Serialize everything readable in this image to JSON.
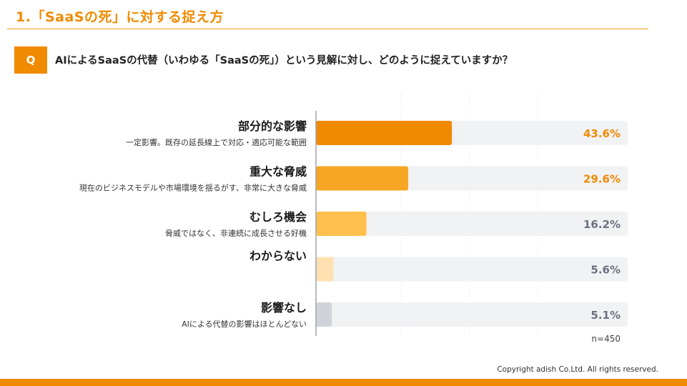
{
  "header": {
    "title": "1.「SaaSの死」に対する捉え方"
  },
  "question": {
    "badge": "Q",
    "text": "AIによるSaaSの代替（いわゆる「SaaSの死」）という見解に対し、どのように捉えていますか？"
  },
  "chart_data": {
    "type": "bar",
    "orientation": "horizontal",
    "categories": [
      "部分的な影響",
      "重大な脅威",
      "むしろ機会",
      "わからない",
      "影響なし"
    ],
    "sublabels": [
      "一定影響。既存の延長線上で対応・適応可能な範囲",
      "現在のビジネスモデルや市場環境を揺るがす、非常に大きな脅威",
      "脅威ではなく、非連続に成長させる好機",
      "",
      "AIによる代替の影響はほとんどない"
    ],
    "values": [
      43.6,
      29.6,
      16.2,
      5.6,
      5.1
    ],
    "value_labels": [
      "43.6%",
      "29.6%",
      "16.2%",
      "5.6%",
      "5.1%"
    ],
    "unit": "%",
    "xlim": [
      0,
      100
    ],
    "colors": [
      "#f08a00",
      "#f5a623",
      "#ffc04d",
      "#ffe0b0",
      "#d0d4da"
    ],
    "label_colors": [
      "#f08a00",
      "#f08a00",
      "#6b7280",
      "#6b7280",
      "#6b7280"
    ],
    "track_color": "#f1f2f4",
    "note": "n=450"
  },
  "footer": {
    "copyright": "Copyright adish Co.Ltd. All rights reserved."
  }
}
